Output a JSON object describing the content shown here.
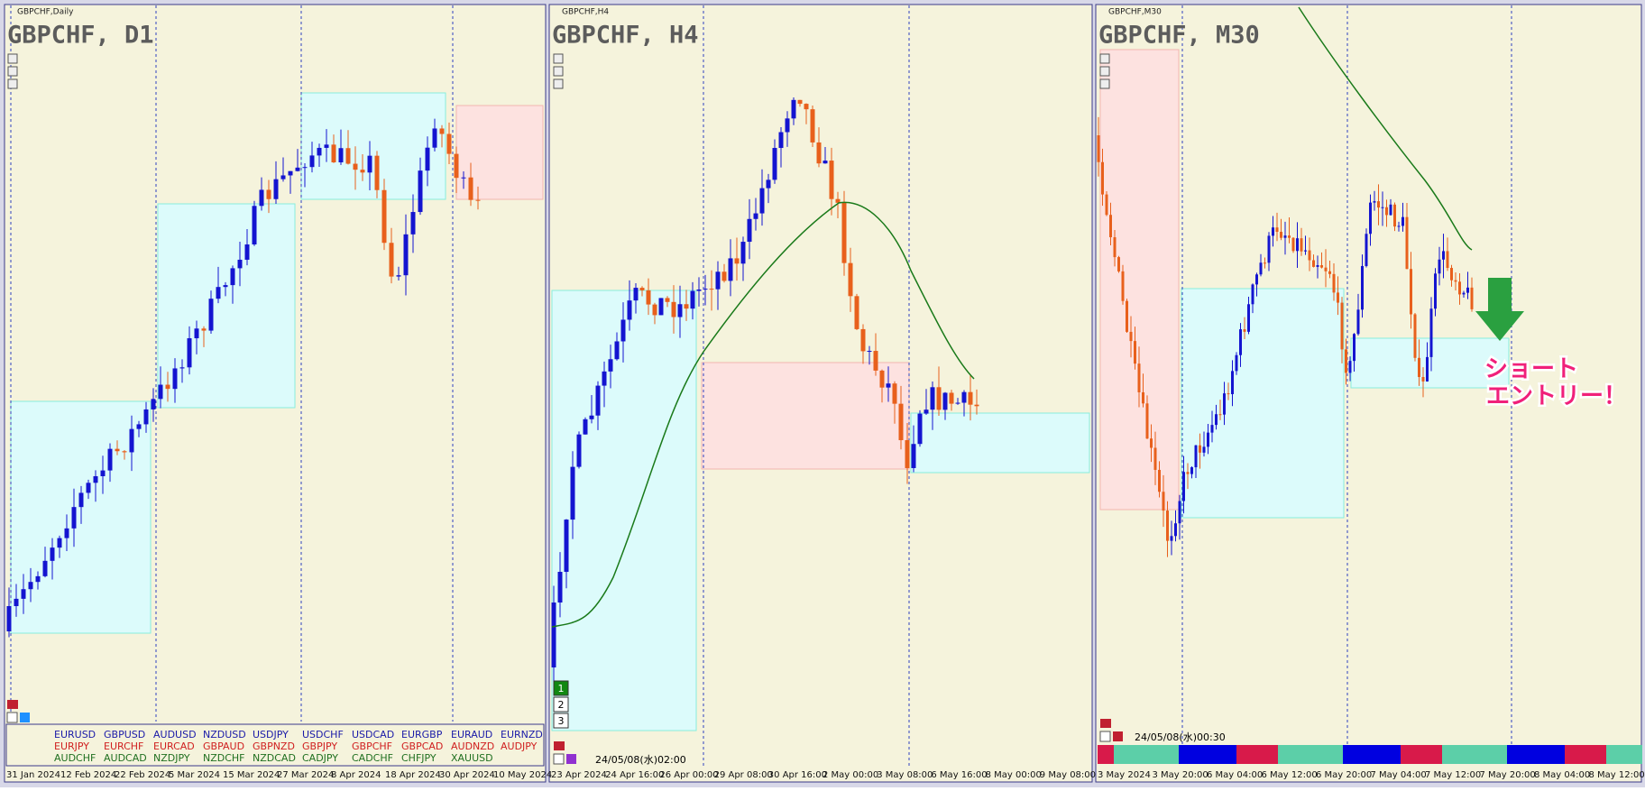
{
  "panels": [
    {
      "header": "GBPCHF,Daily",
      "title": "GBPCHF, D1",
      "time_labels": [
        "31 Jan 2024",
        "12 Feb 2024",
        "22 Feb 2024",
        "5 Mar 2024",
        "15 Mar 2024",
        "27 Mar 2024",
        "8 Apr 2024",
        "18 Apr 2024",
        "30 Apr 2024",
        "10 May 2024"
      ]
    },
    {
      "header": "GBPCHF,H4",
      "title": "GBPCHF, H4",
      "time_labels": [
        "23 Apr 2024",
        "24 Apr 16:00",
        "26 Apr 00:00",
        "29 Apr 08:00",
        "30 Apr 16:00",
        "2 May 00:00",
        "3 May 08:00",
        "6 May 16:00",
        "8 May 00:00",
        "9 May 08:00"
      ],
      "buttons": [
        "1",
        "2",
        "3"
      ],
      "timestamp": "24/05/08(水)02:00"
    },
    {
      "header": "GBPCHF,M30",
      "title": "GBPCHF, M30",
      "time_labels": [
        "3 May 2024",
        "3 May 20:00",
        "6 May 04:00",
        "6 May 12:00",
        "6 May 20:00",
        "7 May 04:00",
        "7 May 12:00",
        "7 May 20:00",
        "8 May 04:00",
        "8 May 12:00"
      ],
      "timestamp": "24/05/08(水)00:30",
      "annotation": [
        "ショート",
        "エントリー！"
      ]
    }
  ],
  "symbols": [
    [
      "EURUSD",
      "GBPUSD",
      "AUDUSD",
      "NZDUSD",
      "USDJPY",
      "USDCHF",
      "USDCAD",
      "EURGBP",
      "EURAUD",
      "EURNZD"
    ],
    [
      "EURJPY",
      "EURCHF",
      "EURCAD",
      "GBPAUD",
      "GBPNZD",
      "GBPJPY",
      "GBPCHF",
      "GBPCAD",
      "AUDNZD",
      "AUDJPY"
    ],
    [
      "AUDCHF",
      "AUDCAD",
      "NZDJPY",
      "NZDCHF",
      "NZDCAD",
      "CADJPY",
      "CADCHF",
      "CHFJPY",
      "XAUUSD"
    ]
  ]
}
